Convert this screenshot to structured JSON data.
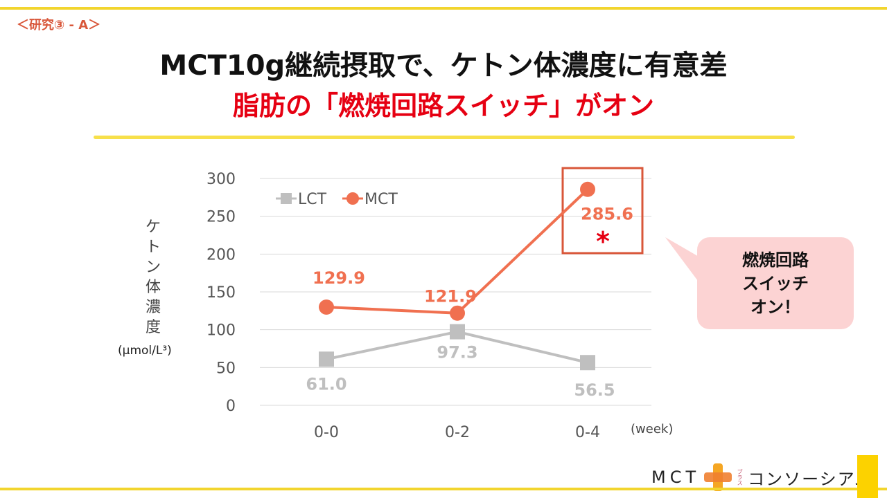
{
  "header": {
    "tag": "＜研究③ - A＞",
    "title": "MCT10g継続摂取で、ケトン体濃度に有意差",
    "subtitle": "脂肪の「燃焼回路スイッチ」がオン"
  },
  "callout": "燃焼回路\nスイッチ\nオン！",
  "logo": {
    "mct": "MCT",
    "plus_small": "プラス",
    "name": "コンソーシアム"
  },
  "chart_data": {
    "type": "line",
    "categories": [
      "0-0",
      "0-2",
      "0-4"
    ],
    "xlabel": "(week)",
    "ylabel": "ケトン体濃度",
    "yunit": "(μmol/L³)",
    "ylim": [
      0,
      300
    ],
    "yticks": [
      "0",
      "50",
      "100",
      "150",
      "200",
      "250",
      "300"
    ],
    "grid": true,
    "legend": "top-left",
    "series": [
      {
        "name": "LCT",
        "values": [
          61.0,
          97.3,
          56.5
        ],
        "labels": [
          "61.0",
          "97.3",
          "56.5"
        ],
        "color": "#bfbfbf",
        "marker": "square"
      },
      {
        "name": "MCT",
        "values": [
          129.9,
          121.9,
          285.6
        ],
        "labels": [
          "129.9",
          "121.9",
          "285.6"
        ],
        "color": "#f07050",
        "marker": "circle"
      }
    ],
    "annotation": {
      "text": "*",
      "color": "#e60012",
      "highlight_color": "#d9573a"
    }
  }
}
